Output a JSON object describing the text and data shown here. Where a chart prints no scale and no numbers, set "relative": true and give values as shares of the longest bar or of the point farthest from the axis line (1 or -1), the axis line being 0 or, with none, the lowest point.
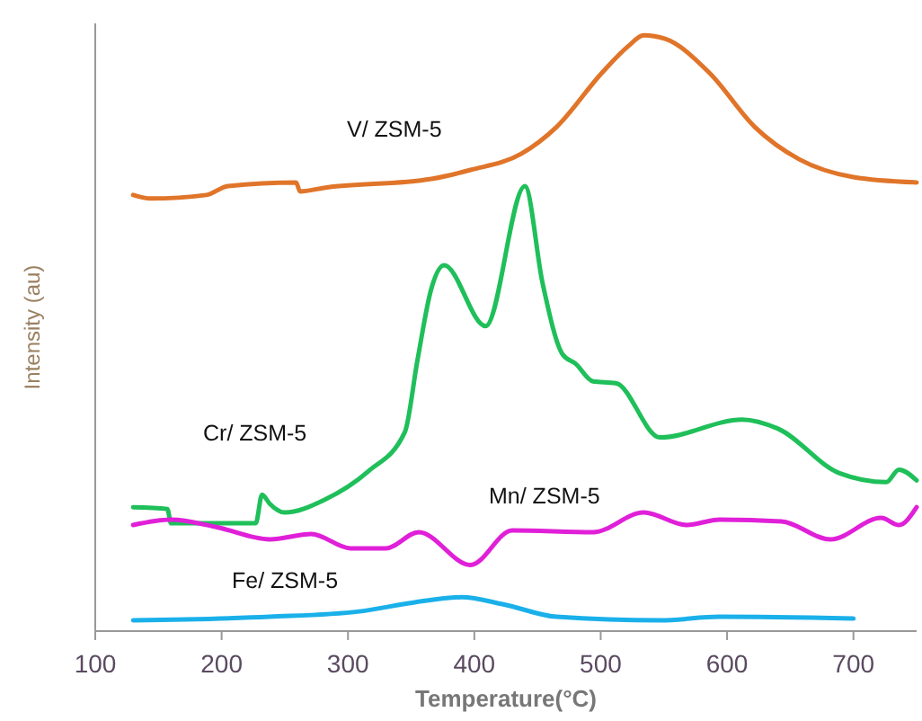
{
  "chart_data": {
    "type": "line",
    "relative": true,
    "xlabel": "Temperature(°C)",
    "ylabel": "Intensity (au)",
    "xlim": [
      100,
      750
    ],
    "xticks": [
      100,
      200,
      300,
      400,
      500,
      600,
      700
    ],
    "series": [
      {
        "name": "V/ ZSM-5",
        "color": "#e0752a",
        "x": [
          130,
          144,
          188,
          205,
          259,
          262,
          281,
          366,
          397,
          437,
          465,
          501,
          522,
          534,
          551,
          586,
          622,
          657,
          700,
          750
        ],
        "values": [
          0.732,
          0.726,
          0.732,
          0.747,
          0.753,
          0.738,
          0.744,
          0.759,
          0.774,
          0.801,
          0.846,
          0.937,
          0.982,
          1.0,
          0.994,
          0.937,
          0.846,
          0.792,
          0.762,
          0.753
        ]
      },
      {
        "name": "Cr/ ZSM-5",
        "color": "#1fbf5a",
        "x": [
          130,
          157,
          160,
          227,
          232,
          238,
          250,
          281,
          316,
          345,
          355,
          366,
          376,
          409,
          440,
          454,
          470,
          480,
          494,
          512,
          547,
          612,
          640,
          689,
          726,
          736,
          750
        ],
        "values": [
          0.208,
          0.205,
          0.181,
          0.181,
          0.229,
          0.214,
          0.199,
          0.22,
          0.268,
          0.334,
          0.455,
          0.575,
          0.614,
          0.512,
          0.747,
          0.584,
          0.464,
          0.449,
          0.419,
          0.416,
          0.325,
          0.355,
          0.34,
          0.265,
          0.25,
          0.271,
          0.253
        ]
      },
      {
        "name": "Mn/ ZSM-5",
        "color": "#e020d8",
        "x": [
          130,
          160,
          195,
          238,
          271,
          302,
          330,
          356,
          397,
          430,
          494,
          534,
          568,
          594,
          643,
          682,
          722,
          736,
          750
        ],
        "values": [
          0.178,
          0.187,
          0.175,
          0.154,
          0.163,
          0.139,
          0.139,
          0.166,
          0.111,
          0.169,
          0.166,
          0.199,
          0.178,
          0.187,
          0.184,
          0.154,
          0.19,
          0.178,
          0.208
        ]
      },
      {
        "name": "Fe/ ZSM-5",
        "color": "#1ab0ea",
        "x": [
          130,
          238,
          309,
          352,
          390,
          423,
          465,
          547,
          594,
          700
        ],
        "values": [
          0.018,
          0.024,
          0.033,
          0.048,
          0.057,
          0.045,
          0.024,
          0.018,
          0.024,
          0.021
        ]
      }
    ]
  }
}
